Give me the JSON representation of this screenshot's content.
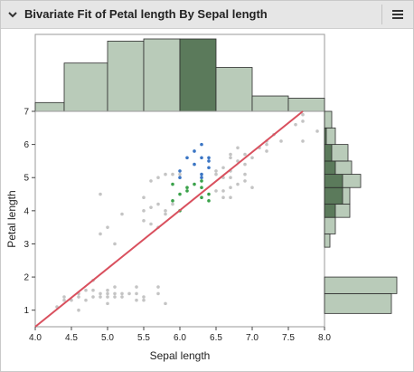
{
  "window": {
    "title": "Bivariate Fit of Petal length By Sepal length",
    "collapse_icon": "chevron-down-icon",
    "menu_icon": "hamburger-menu-icon"
  },
  "colors": {
    "hist_fill": "#b9cbb9",
    "hist_selected": "#5b7a5b",
    "point_gray": "#c4c4c4",
    "point_blue": "#3a75c4",
    "point_green": "#3aa24a",
    "fit_line": "#d9505e"
  },
  "chart_data": {
    "type": "scatter",
    "xlabel": "Sepal length",
    "ylabel": "Petal length",
    "xlim": [
      4.0,
      8.0
    ],
    "ylim": [
      0.5,
      7.0
    ],
    "xticks": [
      "4.0",
      "4.5",
      "5.0",
      "5.5",
      "6.0",
      "6.5",
      "7.0",
      "7.5",
      "8.0"
    ],
    "yticks": [
      "1",
      "2",
      "3",
      "4",
      "5",
      "6",
      "7"
    ],
    "grid": false,
    "fit_line": {
      "x": [
        4.0,
        7.7
      ],
      "y": [
        0.5,
        7.0
      ]
    },
    "series": [
      {
        "points": [
          [
            4.3,
            1.1
          ],
          [
            4.4,
            1.3
          ],
          [
            4.4,
            1.4
          ],
          [
            4.5,
            1.3
          ],
          [
            4.6,
            1.0
          ],
          [
            4.6,
            1.4
          ],
          [
            4.6,
            1.5
          ],
          [
            4.7,
            1.3
          ],
          [
            4.7,
            1.6
          ],
          [
            4.8,
            1.4
          ],
          [
            4.8,
            1.6
          ],
          [
            4.8,
            1.9
          ],
          [
            4.9,
            1.4
          ],
          [
            4.9,
            1.5
          ],
          [
            5.0,
            1.2
          ],
          [
            5.0,
            1.4
          ],
          [
            5.0,
            1.5
          ],
          [
            5.0,
            1.6
          ],
          [
            5.1,
            1.4
          ],
          [
            5.1,
            1.5
          ],
          [
            5.1,
            1.7
          ],
          [
            5.2,
            1.4
          ],
          [
            5.2,
            1.5
          ],
          [
            5.3,
            1.5
          ],
          [
            5.4,
            1.3
          ],
          [
            5.4,
            1.5
          ],
          [
            5.4,
            1.7
          ],
          [
            5.5,
            1.3
          ],
          [
            5.5,
            1.4
          ],
          [
            5.7,
            1.5
          ],
          [
            5.7,
            1.7
          ],
          [
            5.8,
            1.2
          ],
          [
            4.9,
            3.3
          ],
          [
            5.0,
            3.5
          ],
          [
            5.1,
            3.0
          ],
          [
            5.2,
            3.9
          ],
          [
            5.5,
            3.7
          ],
          [
            5.5,
            4.0
          ],
          [
            5.5,
            4.4
          ],
          [
            5.6,
            3.6
          ],
          [
            5.6,
            4.1
          ],
          [
            5.7,
            3.5
          ],
          [
            5.7,
            4.2
          ],
          [
            5.8,
            3.9
          ],
          [
            5.8,
            4.0
          ],
          [
            5.9,
            4.2
          ],
          [
            4.9,
            4.5
          ],
          [
            5.6,
            4.9
          ],
          [
            5.8,
            5.1
          ],
          [
            5.7,
            5.0
          ],
          [
            5.9,
            5.1
          ],
          [
            6.0,
            5.1
          ],
          [
            6.6,
            4.4
          ],
          [
            6.6,
            4.6
          ],
          [
            6.7,
            4.4
          ],
          [
            6.7,
            4.7
          ],
          [
            6.7,
            5.0
          ],
          [
            6.8,
            4.8
          ],
          [
            6.9,
            4.9
          ],
          [
            7.0,
            4.7
          ],
          [
            6.7,
            5.2
          ],
          [
            6.7,
            5.6
          ],
          [
            6.7,
            5.7
          ],
          [
            6.5,
            5.2
          ],
          [
            6.5,
            5.1
          ],
          [
            6.9,
            5.1
          ],
          [
            6.8,
            5.5
          ],
          [
            6.8,
            5.9
          ],
          [
            7.1,
            5.9
          ],
          [
            7.2,
            5.8
          ],
          [
            7.2,
            6.0
          ],
          [
            7.2,
            6.1
          ],
          [
            7.3,
            6.3
          ],
          [
            7.4,
            6.1
          ],
          [
            7.6,
            6.6
          ],
          [
            7.7,
            6.7
          ],
          [
            7.7,
            6.9
          ],
          [
            7.7,
            6.1
          ],
          [
            7.9,
            6.4
          ],
          [
            7.0,
            5.6
          ],
          [
            6.9,
            5.7
          ],
          [
            6.9,
            5.4
          ],
          [
            6.6,
            5.0
          ],
          [
            6.5,
            4.6
          ],
          [
            6.6,
            5.3
          ]
        ]
      },
      {
        "points": [
          [
            6.0,
            5.0
          ],
          [
            6.0,
            5.2
          ],
          [
            6.1,
            5.6
          ],
          [
            6.2,
            5.4
          ],
          [
            6.2,
            5.8
          ],
          [
            6.3,
            5.0
          ],
          [
            6.3,
            6.0
          ],
          [
            6.3,
            5.6
          ],
          [
            6.4,
            5.3
          ],
          [
            6.4,
            5.5
          ],
          [
            6.4,
            5.6
          ],
          [
            6.3,
            5.1
          ]
        ]
      },
      {
        "points": [
          [
            5.9,
            4.8
          ],
          [
            5.9,
            4.3
          ],
          [
            6.0,
            4.5
          ],
          [
            6.0,
            4.0
          ],
          [
            6.1,
            4.6
          ],
          [
            6.2,
            4.8
          ],
          [
            6.3,
            4.4
          ],
          [
            6.3,
            4.9
          ],
          [
            6.4,
            4.5
          ],
          [
            6.4,
            4.3
          ],
          [
            6.1,
            4.7
          ],
          [
            6.3,
            4.7
          ]
        ]
      }
    ],
    "histogram_x": {
      "bins": [
        [
          4.0,
          4.4
        ],
        [
          4.4,
          5.0
        ],
        [
          5.0,
          5.5
        ],
        [
          5.5,
          6.0
        ],
        [
          6.0,
          6.5
        ],
        [
          6.5,
          7.0
        ],
        [
          7.0,
          7.5
        ],
        [
          7.5,
          8.0
        ]
      ],
      "counts": [
        4,
        22,
        32,
        33,
        33,
        20,
        7,
        6
      ],
      "selected_bin": 4
    },
    "histogram_y": {
      "bins": [
        [
          0.9,
          1.5
        ],
        [
          1.5,
          2.0
        ],
        [
          2.9,
          3.3
        ],
        [
          3.3,
          3.8
        ],
        [
          3.8,
          4.2
        ],
        [
          4.2,
          4.7
        ],
        [
          4.7,
          5.1
        ],
        [
          5.1,
          5.5
        ],
        [
          5.5,
          6.0
        ],
        [
          6.0,
          6.5
        ],
        [
          6.5,
          7.0
        ]
      ],
      "counts": [
        37,
        40,
        3,
        6,
        14,
        14,
        20,
        15,
        13,
        6,
        4
      ],
      "selected": [
        0,
        0,
        0,
        0,
        6,
        10,
        10,
        6,
        4,
        1,
        0
      ]
    }
  }
}
